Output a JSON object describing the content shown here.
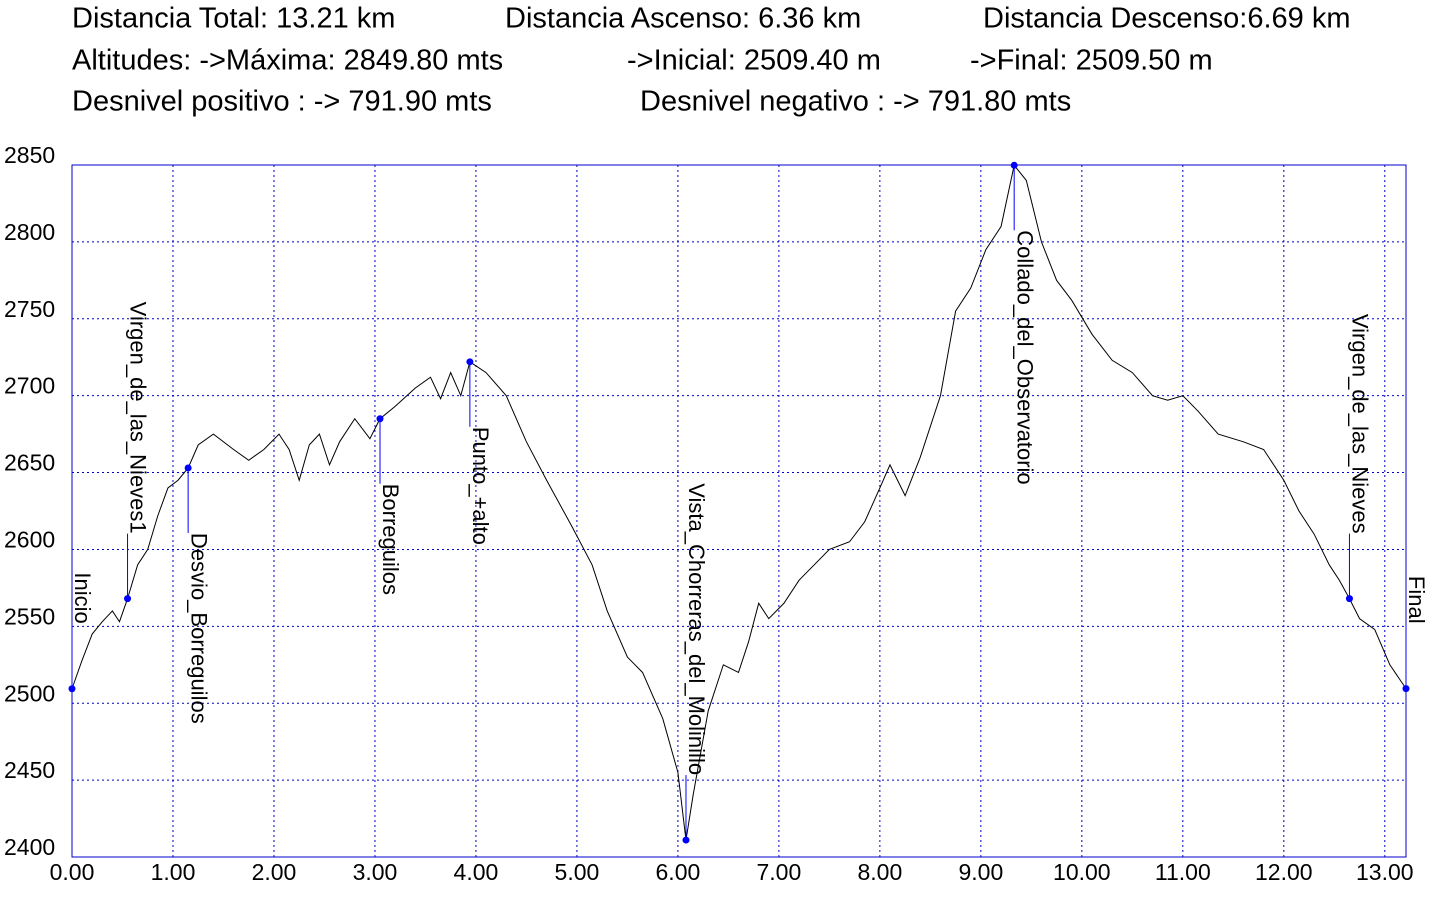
{
  "chart_data": {
    "type": "line",
    "header": [
      [
        "Distancia Total: 13.21 km",
        "Distancia Ascenso: 6.36 km",
        "Distancia Descenso:6.69 km"
      ],
      [
        "Altitudes: ->Máxima: 2849.80 mts",
        "->Inicial: 2509.40 m",
        "->Final: 2509.50 m"
      ],
      [
        "Desnivel positivo : -> 791.90 mts",
        "Desnivel negativo : -> 791.80 mts"
      ]
    ],
    "x": [
      0,
      0.1,
      0.2,
      0.3,
      0.4,
      0.47,
      0.55,
      0.65,
      0.75,
      0.85,
      0.95,
      1.05,
      1.15,
      1.25,
      1.4,
      1.6,
      1.75,
      1.9,
      2.05,
      2.15,
      2.25,
      2.35,
      2.45,
      2.55,
      2.65,
      2.8,
      2.95,
      3.05,
      3.2,
      3.4,
      3.55,
      3.65,
      3.75,
      3.85,
      3.94,
      4.1,
      4.3,
      4.5,
      4.7,
      4.95,
      5.15,
      5.3,
      5.5,
      5.65,
      5.85,
      6.0,
      6.08,
      6.15,
      6.3,
      6.45,
      6.6,
      6.7,
      6.8,
      6.9,
      7.05,
      7.2,
      7.35,
      7.5,
      7.7,
      7.85,
      8.0,
      8.1,
      8.25,
      8.4,
      8.6,
      8.75,
      8.9,
      9.05,
      9.2,
      9.33,
      9.45,
      9.6,
      9.75,
      9.9,
      10.1,
      10.3,
      10.5,
      10.7,
      10.85,
      11.0,
      11.15,
      11.35,
      11.6,
      11.8,
      12.0,
      12.15,
      12.3,
      12.45,
      12.55,
      12.65,
      12.75,
      12.9,
      13.05,
      13.21
    ],
    "values": [
      2509.4,
      2528,
      2545,
      2553,
      2560,
      2553,
      2568,
      2590,
      2600,
      2622,
      2640,
      2645,
      2653,
      2668,
      2675,
      2665,
      2658,
      2665,
      2675,
      2665,
      2645,
      2668,
      2675,
      2655,
      2670,
      2685,
      2672,
      2685,
      2693,
      2705,
      2712,
      2698,
      2715,
      2700,
      2722,
      2715,
      2700,
      2670,
      2645,
      2615,
      2590,
      2560,
      2530,
      2520,
      2490,
      2455,
      2411,
      2440,
      2495,
      2525,
      2520,
      2540,
      2565,
      2555,
      2565,
      2580,
      2590,
      2600,
      2605,
      2618,
      2640,
      2655,
      2635,
      2660,
      2700,
      2755,
      2770,
      2795,
      2810,
      2849.8,
      2840,
      2800,
      2775,
      2762,
      2740,
      2723,
      2715,
      2700,
      2697,
      2700,
      2690,
      2675,
      2670,
      2665,
      2645,
      2625,
      2610,
      2590,
      2580,
      2568,
      2555,
      2548,
      2525,
      2509.5
    ],
    "color": "#000000",
    "waypoints": {
      "names": [
        "Inicio",
        "Virgen_de_las_Nieves1",
        "Desvio_Borreguilos",
        "Borreguilos",
        "Punto_+alto",
        "Vista_Chorreras_del_Molinillo",
        "Collado_del_Observatorio",
        "Virgen_de_las_Nieves",
        "Final"
      ],
      "x": [
        0,
        0.55,
        1.15,
        3.05,
        3.94,
        6.08,
        9.33,
        12.65,
        13.21
      ],
      "values": [
        2509.4,
        2568,
        2653,
        2685,
        2722,
        2411,
        2849.8,
        2568,
        2509.5
      ],
      "color": "#0000ff"
    },
    "xlim": [
      0,
      13.21
    ],
    "ylim": [
      2400,
      2850
    ],
    "xticks": [
      {
        "value": 0,
        "label": "0.00"
      },
      {
        "value": 1,
        "label": "1.00"
      },
      {
        "value": 2,
        "label": "2.00"
      },
      {
        "value": 3,
        "label": "3.00"
      },
      {
        "value": 4,
        "label": "4.00"
      },
      {
        "value": 5,
        "label": "5.00"
      },
      {
        "value": 6,
        "label": "6.00"
      },
      {
        "value": 7,
        "label": "7.00"
      },
      {
        "value": 8,
        "label": "8.00"
      },
      {
        "value": 9,
        "label": "9.00"
      },
      {
        "value": 10,
        "label": "10.00"
      },
      {
        "value": 11,
        "label": "11.00"
      },
      {
        "value": 12,
        "label": "12.00"
      },
      {
        "value": 13,
        "label": "13.00"
      }
    ],
    "yticks": [
      2400,
      2450,
      2500,
      2550,
      2600,
      2650,
      2700,
      2750,
      2800,
      2850
    ],
    "grid": true,
    "grid_color": "#0000cc"
  }
}
